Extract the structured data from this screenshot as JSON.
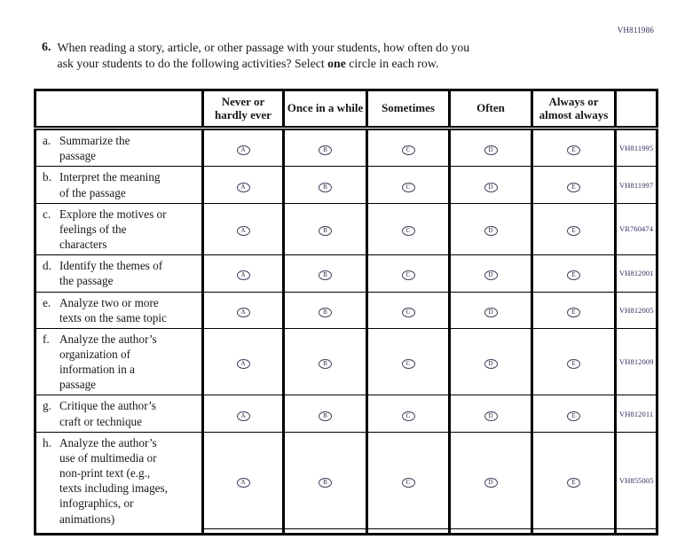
{
  "page": {
    "top_right_code": "VH811986"
  },
  "question": {
    "number": "6.",
    "line1": "When reading a story, article, or other passage with your students, how often do you",
    "line2_before": "ask your students to do the following activities? Select ",
    "line2_bold": "one",
    "line2_after": " circle in each row."
  },
  "table": {
    "columns": [
      "Never or hardly ever",
      "Once in a while",
      "Sometimes",
      "Often",
      "Always or almost always"
    ],
    "options": [
      "A",
      "B",
      "C",
      "D",
      "E"
    ],
    "rows": [
      {
        "prefix": "a.",
        "label": "Summarize the passage",
        "code": "VH811995"
      },
      {
        "prefix": "b.",
        "label": "Interpret the meaning of the passage",
        "code": "VH811997"
      },
      {
        "prefix": "c.",
        "label": "Explore the motives or feelings of the characters",
        "code": "VR760474"
      },
      {
        "prefix": "d.",
        "label": "Identify the themes of the passage",
        "code": "VH812001"
      },
      {
        "prefix": "e.",
        "label": "Analyze two or more texts on the same topic",
        "code": "VH812005"
      },
      {
        "prefix": "f.",
        "label": "Analyze the author’s organization of information in a passage",
        "code": "VH812009"
      },
      {
        "prefix": "g.",
        "label": "Critique the author’s craft or technique",
        "code": "VH812011"
      },
      {
        "prefix": "h.",
        "label": "Analyze the author’s use of multimedia or non-print text (e.g., texts including images, infographics, or animations)",
        "code": "VH855005"
      }
    ]
  },
  "colors": {
    "ink": "#17171c",
    "id_code_text": "#2d2d5e",
    "table_border": "#000000"
  }
}
